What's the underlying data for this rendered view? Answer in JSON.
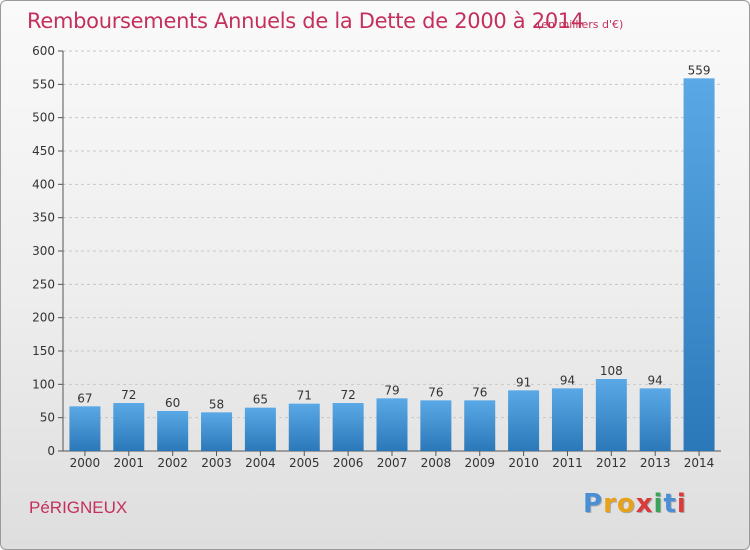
{
  "header": {
    "title": "Remboursements Annuels de la Dette de 2000 à 2014",
    "unit": "(en milliers d'€)"
  },
  "footer": {
    "commune": "PéRIGNEUX",
    "logo_letters": [
      "P",
      "r",
      "o",
      "x",
      "i",
      "t",
      "i"
    ],
    "logo_colors": [
      "#4a8fd6",
      "#e8a21a",
      "#e8a21a",
      "#d93a3a",
      "#3aa35a",
      "#4a8fd6",
      "#d93a3a"
    ]
  },
  "colors": {
    "accent": "#c4305b",
    "bar_light": "#5aa9e6",
    "bar_dark": "#2b78b8"
  },
  "chart_data": {
    "type": "bar",
    "title": "Remboursements Annuels de la Dette de 2000 à 2014",
    "categories": [
      "2000",
      "2001",
      "2002",
      "2003",
      "2004",
      "2005",
      "2006",
      "2007",
      "2008",
      "2009",
      "2010",
      "2011",
      "2012",
      "2013",
      "2014"
    ],
    "values": [
      67,
      72,
      60,
      58,
      65,
      71,
      72,
      79,
      76,
      76,
      91,
      94,
      108,
      94,
      559
    ],
    "ylim": [
      0,
      600
    ],
    "yticks": [
      0,
      50,
      100,
      150,
      200,
      250,
      300,
      350,
      400,
      450,
      500,
      550,
      600
    ],
    "grid": true,
    "xlabel": "",
    "ylabel": ""
  }
}
